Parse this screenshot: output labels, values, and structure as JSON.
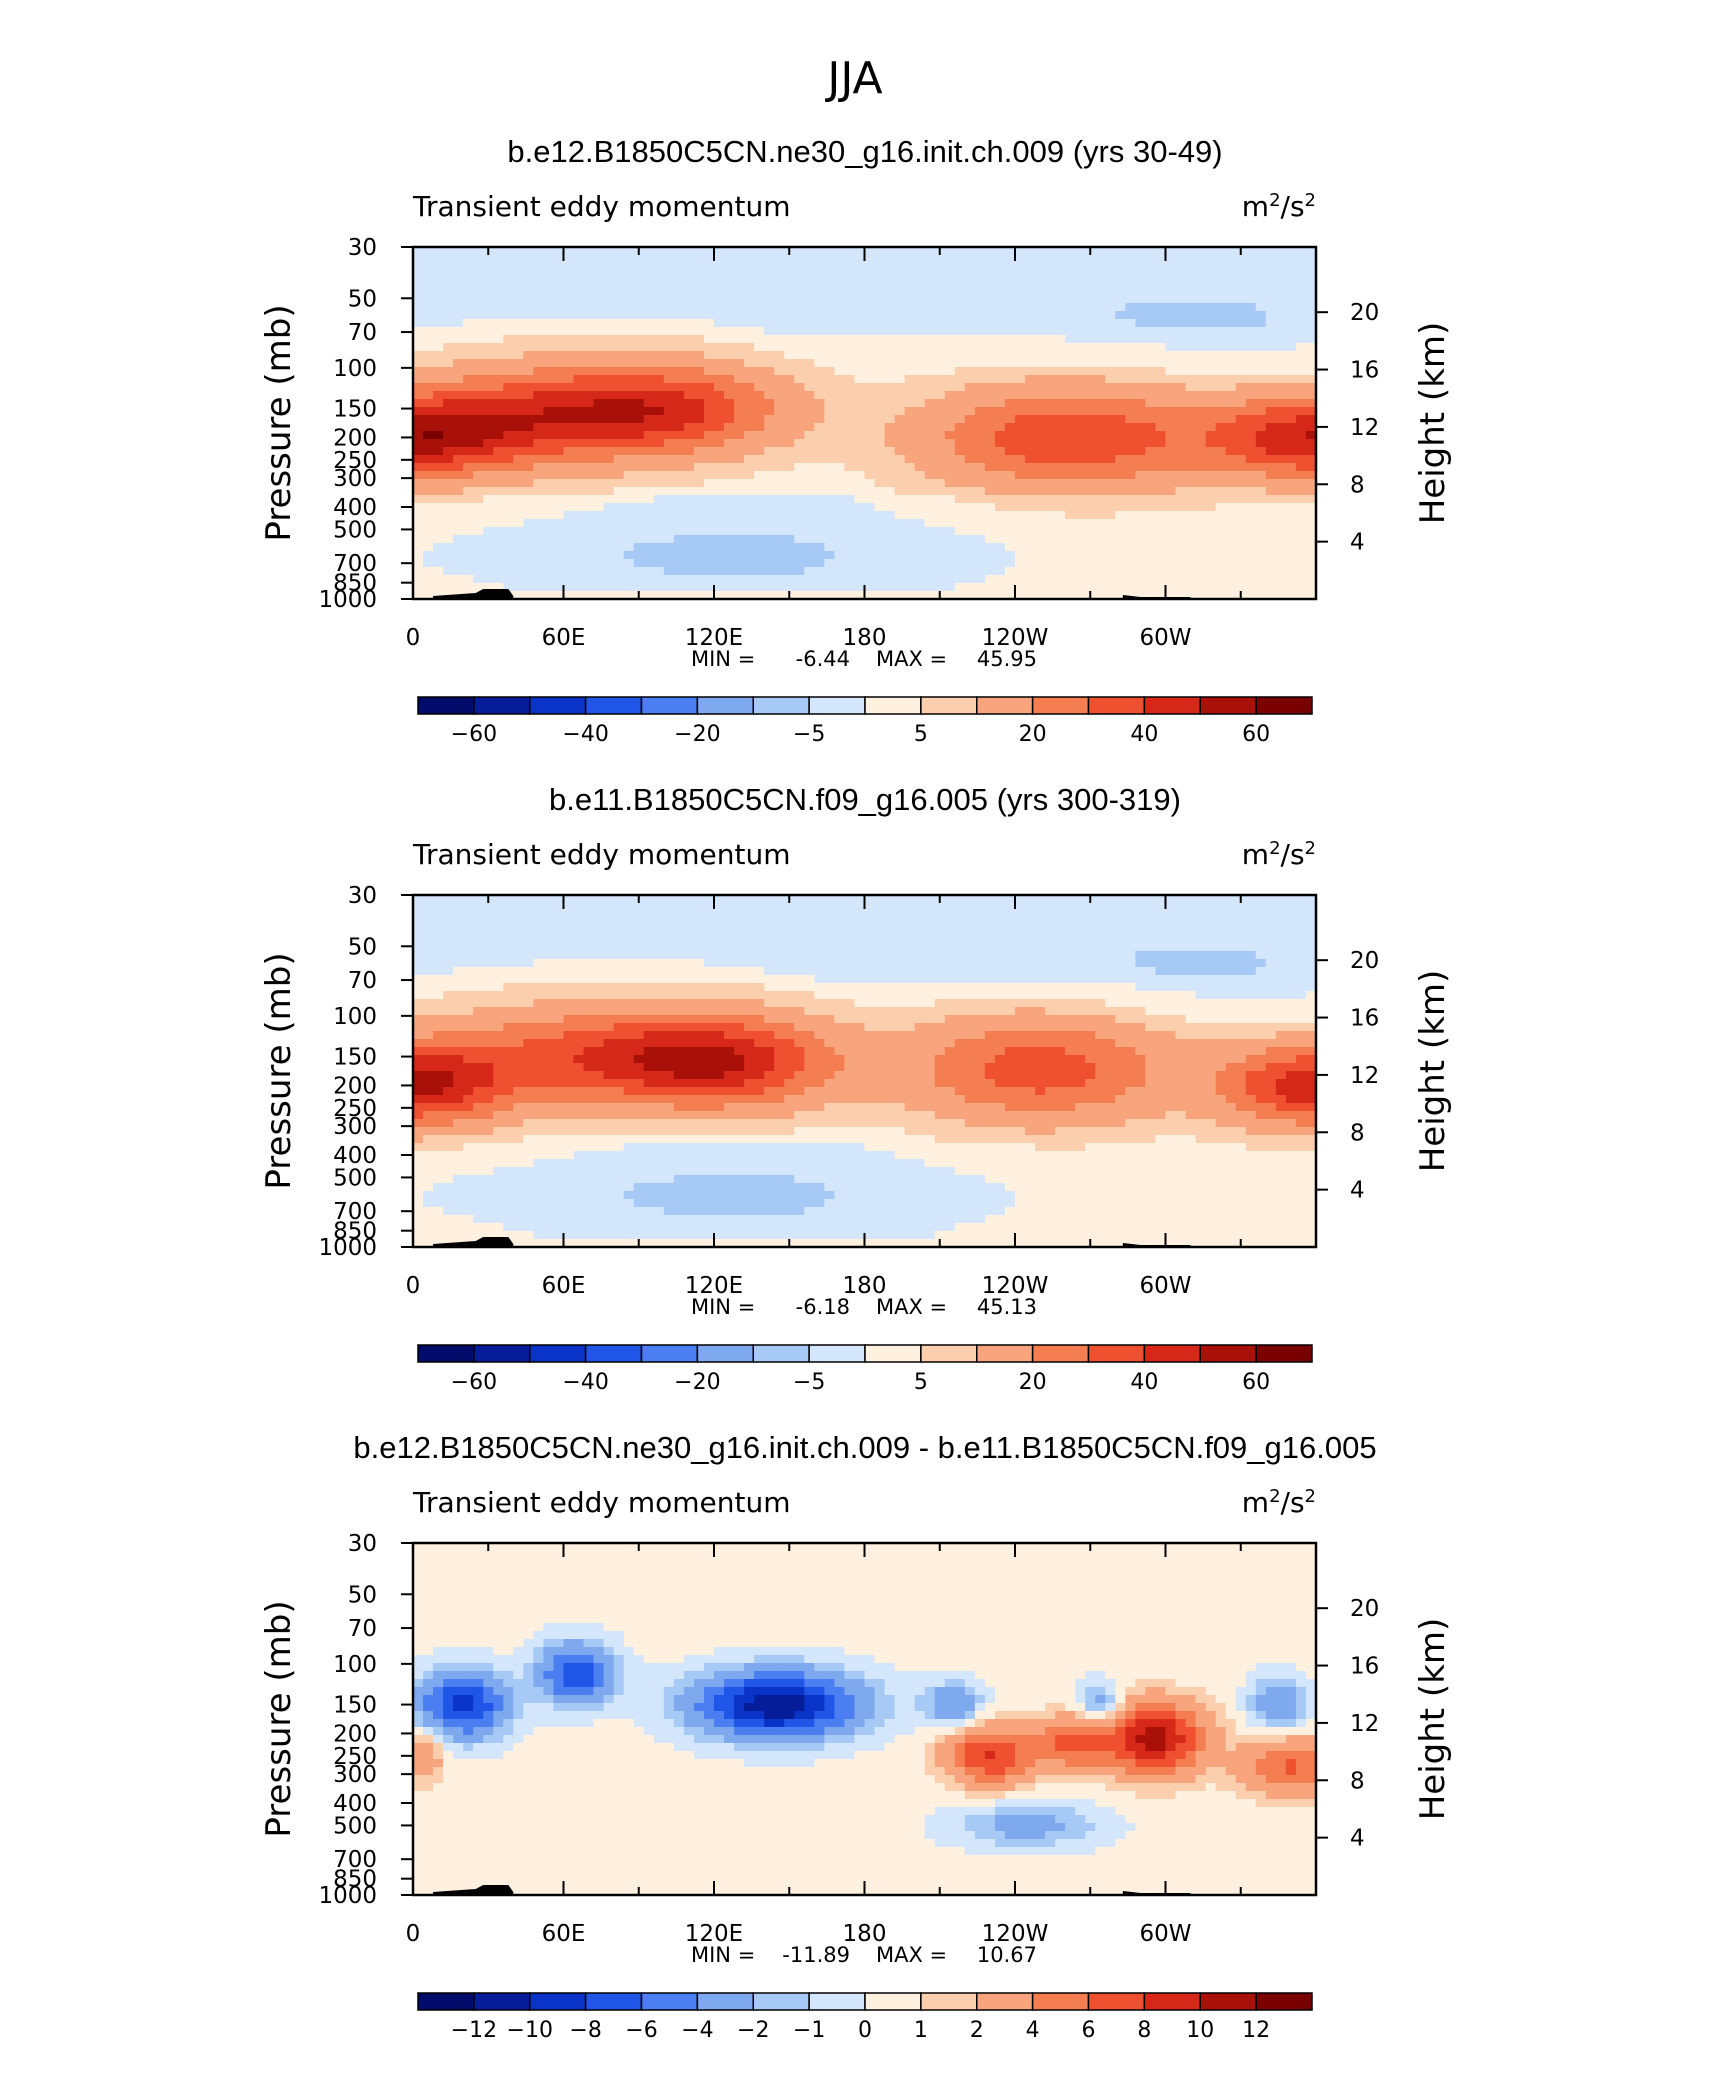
{
  "figure": {
    "title": "JJA"
  },
  "chart_data": [
    {
      "type": "heatmap",
      "title": "b.e12.B1850C5CN.ne30_g16.init.ch.009 (yrs 30-49)",
      "left_label": "Transient eddy momentum",
      "units_base": "m",
      "units_exp1": "2",
      "units_sep": "/s",
      "units_exp2": "2",
      "ylabel": "Pressure (mb)",
      "ylabel_right": "Height (km)",
      "xticks": [
        "0",
        "60E",
        "120E",
        "180",
        "120W",
        "60W"
      ],
      "yticks": [
        "30",
        "50",
        "70",
        "100",
        "150",
        "200",
        "250",
        "300",
        "400",
        "500",
        "700",
        "850",
        "1000"
      ],
      "height_ticks": [
        "20",
        "16",
        "12",
        "8",
        "4"
      ],
      "min_label": "MIN =",
      "min": "-6.44",
      "max_label": "MAX =",
      "max": "45.95",
      "colorbar_ticks": [
        "-60",
        "-40",
        "-20",
        "-5",
        "5",
        "20",
        "40",
        "60"
      ],
      "jets": [
        {
          "lon": 0,
          "p": 200,
          "peak": 45.9,
          "wlon": 28,
          "wp": 0.28
        },
        {
          "lon": 360,
          "p": 200,
          "peak": 45.9,
          "wlon": 28,
          "wp": 0.28
        },
        {
          "lon": 55,
          "p": 160,
          "peak": 35,
          "wlon": 38,
          "wp": 0.33
        },
        {
          "lon": 105,
          "p": 150,
          "peak": 30,
          "wlon": 32,
          "wp": 0.3
        },
        {
          "lon": 262,
          "p": 200,
          "peak": 36,
          "wlon": 40,
          "wp": 0.35
        }
      ],
      "neg_areas": [
        {
          "lon": 120,
          "p": 650,
          "peak": -5,
          "wlon": 90,
          "wp": 0.25
        },
        {
          "lon": 310,
          "p": 60,
          "peak": -5,
          "wlon": 70,
          "wp": 0.35
        }
      ]
    },
    {
      "type": "heatmap",
      "title": "b.e11.B1850C5CN.f09_g16.005 (yrs 300-319)",
      "left_label": "Transient eddy momentum",
      "units_base": "m",
      "units_exp1": "2",
      "units_sep": "/s",
      "units_exp2": "2",
      "ylabel": "Pressure (mb)",
      "ylabel_right": "Height (km)",
      "xticks": [
        "0",
        "60E",
        "120E",
        "180",
        "120W",
        "60W"
      ],
      "yticks": [
        "30",
        "50",
        "70",
        "100",
        "150",
        "200",
        "250",
        "300",
        "400",
        "500",
        "700",
        "850",
        "1000"
      ],
      "height_ticks": [
        "20",
        "16",
        "12",
        "8",
        "4"
      ],
      "min_label": "MIN =",
      "min": "-6.18",
      "max_label": "MAX =",
      "max": "45.13",
      "colorbar_ticks": [
        "-60",
        "-40",
        "-20",
        "-5",
        "5",
        "20",
        "40",
        "60"
      ],
      "jets": [
        {
          "lon": 0,
          "p": 200,
          "peak": 45.1,
          "wlon": 26,
          "wp": 0.28
        },
        {
          "lon": 360,
          "p": 200,
          "peak": 45.1,
          "wlon": 26,
          "wp": 0.28
        },
        {
          "lon": 80,
          "p": 150,
          "peak": 34,
          "wlon": 48,
          "wp": 0.33
        },
        {
          "lon": 125,
          "p": 160,
          "peak": 30,
          "wlon": 30,
          "wp": 0.3
        },
        {
          "lon": 250,
          "p": 170,
          "peak": 33,
          "wlon": 36,
          "wp": 0.36
        }
      ],
      "neg_areas": [
        {
          "lon": 120,
          "p": 600,
          "peak": -5,
          "wlon": 90,
          "wp": 0.25
        },
        {
          "lon": 310,
          "p": 60,
          "peak": -5,
          "wlon": 70,
          "wp": 0.35
        }
      ]
    },
    {
      "type": "heatmap",
      "title": "b.e12.B1850C5CN.ne30_g16.init.ch.009 - b.e11.B1850C5CN.f09_g16.005",
      "left_label": "Transient eddy momentum",
      "units_base": "m",
      "units_exp1": "2",
      "units_sep": "/s",
      "units_exp2": "2",
      "ylabel": "Pressure (mb)",
      "ylabel_right": "Height (km)",
      "xticks": [
        "0",
        "60E",
        "120E",
        "180",
        "120W",
        "60W"
      ],
      "yticks": [
        "30",
        "50",
        "70",
        "100",
        "150",
        "200",
        "250",
        "300",
        "400",
        "500",
        "700",
        "850",
        "1000"
      ],
      "height_ticks": [
        "20",
        "16",
        "12",
        "8",
        "4"
      ],
      "min_label": "MIN =",
      "min": "-11.89",
      "max_label": "MAX =",
      "max": "10.67",
      "colorbar_ticks": [
        "-12",
        "-10",
        "-8",
        "-6",
        "-4",
        "-2",
        "-1",
        "0",
        "1",
        "2",
        "4",
        "6",
        "8",
        "10",
        "12"
      ],
      "jets": [
        {
          "lon": 20,
          "p": 150,
          "peak": -9,
          "wlon": 12,
          "wp": 0.22
        },
        {
          "lon": 65,
          "p": 110,
          "peak": -8,
          "wlon": 10,
          "wp": 0.2
        },
        {
          "lon": 145,
          "p": 150,
          "peak": -11.9,
          "wlon": 22,
          "wp": 0.22
        },
        {
          "lon": 215,
          "p": 150,
          "peak": -4,
          "wlon": 8,
          "wp": 0.15
        },
        {
          "lon": 274,
          "p": 150,
          "peak": -4,
          "wlon": 6,
          "wp": 0.15
        },
        {
          "lon": 345,
          "p": 150,
          "peak": -4,
          "wlon": 8,
          "wp": 0.18
        },
        {
          "lon": 230,
          "p": 250,
          "peak": 8,
          "wlon": 12,
          "wp": 0.2
        },
        {
          "lon": 262,
          "p": 220,
          "peak": 6,
          "wlon": 10,
          "wp": 0.18
        },
        {
          "lon": 295,
          "p": 210,
          "peak": 10.7,
          "wlon": 14,
          "wp": 0.25
        },
        {
          "lon": 350,
          "p": 280,
          "peak": 6,
          "wlon": 14,
          "wp": 0.2
        },
        {
          "lon": 5,
          "p": 250,
          "peak": 3,
          "wlon": 6,
          "wp": 0.2
        },
        {
          "lon": 245,
          "p": 500,
          "peak": -3,
          "wlon": 20,
          "wp": 0.15
        }
      ],
      "neg_areas": []
    }
  ],
  "colors": {
    "positive": [
      "#fff0e0",
      "#fbcfad",
      "#f8a57d",
      "#f47d52",
      "#ef5030",
      "#d62818",
      "#a81008",
      "#7a0000"
    ],
    "negative": [
      "#d3e6fb",
      "#a7c9f5",
      "#7ea9ef",
      "#4b7ef0",
      "#1f56e8",
      "#0a33c8",
      "#061d9a",
      "#020b6a"
    ],
    "zero": "#fff0e0",
    "topo": "#000000"
  }
}
